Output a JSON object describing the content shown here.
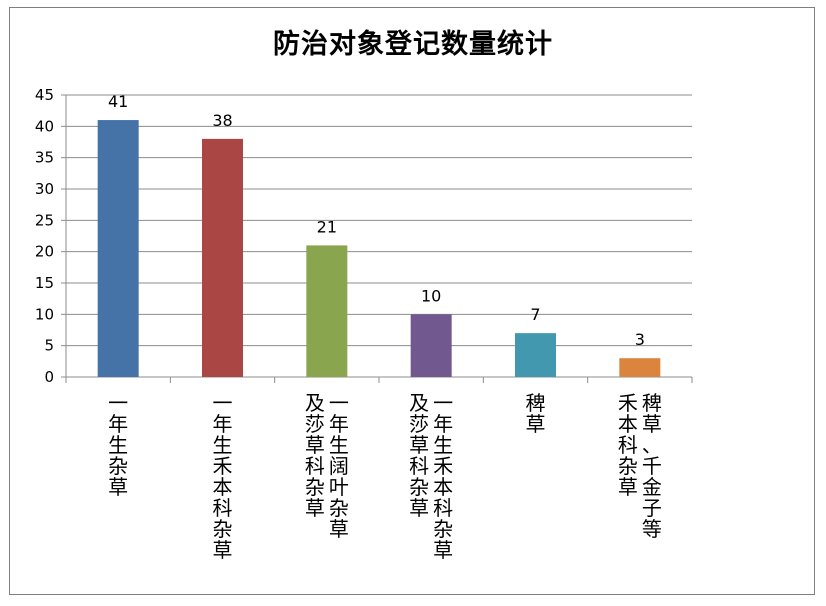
{
  "chart_data": {
    "type": "bar",
    "title": "防治对象登记数量统计",
    "categories": [
      [
        "一年生杂草"
      ],
      [
        "一年生禾本科杂草"
      ],
      [
        "一年生阔叶杂草",
        "及莎草科杂草"
      ],
      [
        "一年生禾本科杂草",
        "及莎草科杂草"
      ],
      [
        "稗草"
      ],
      [
        "稗草、千金子等",
        "禾本科杂草"
      ]
    ],
    "values": [
      41,
      38,
      21,
      10,
      7,
      3
    ],
    "colors": [
      "#4572A7",
      "#AA4643",
      "#89A54E",
      "#71588F",
      "#4198AF",
      "#DB843D"
    ],
    "ylim": [
      0,
      45
    ],
    "yticks": [
      0,
      5,
      10,
      15,
      20,
      25,
      30,
      35,
      40,
      45
    ],
    "grid": true,
    "xlabel": "",
    "ylabel": ""
  }
}
